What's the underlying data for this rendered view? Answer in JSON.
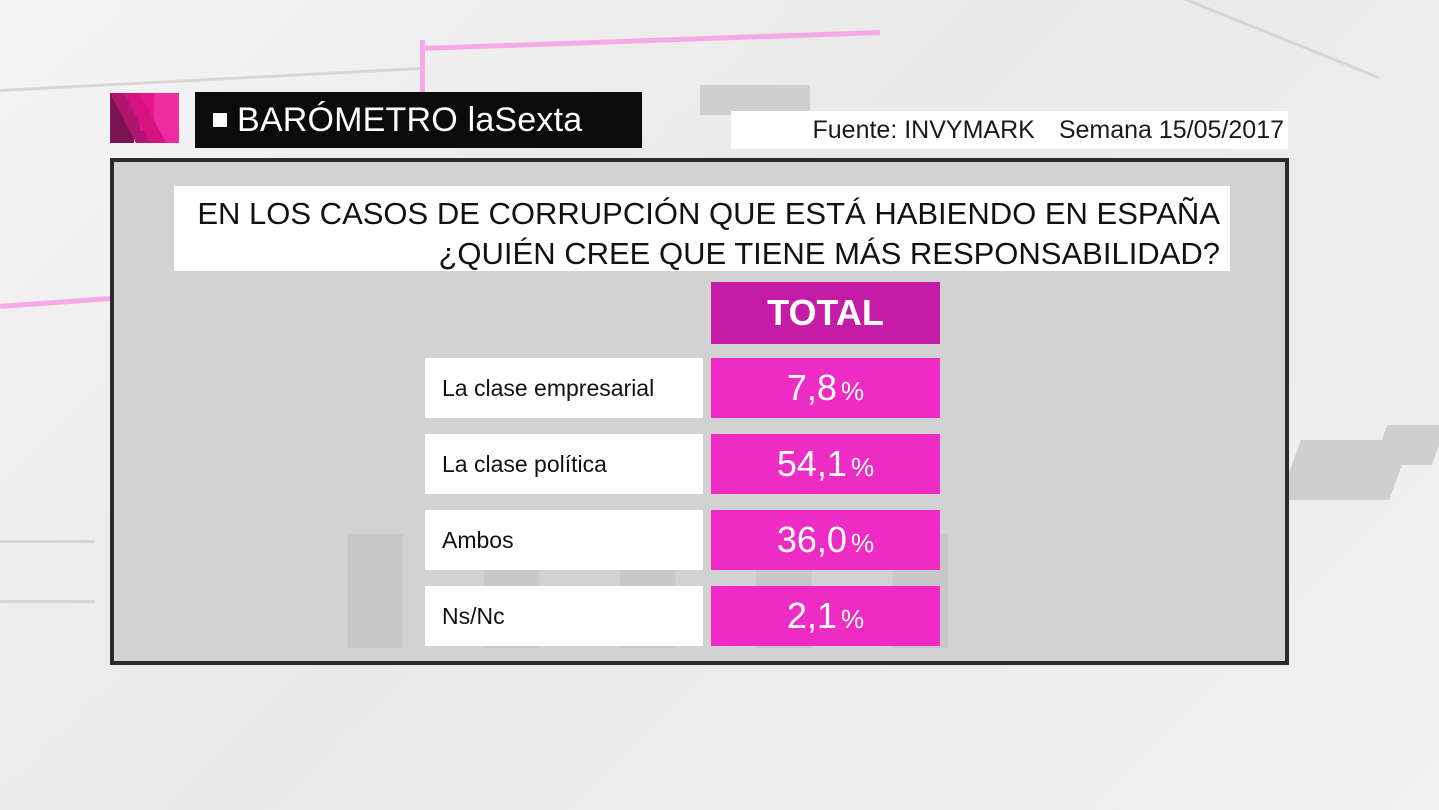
{
  "header": {
    "title": "BARÓMETRO laSexta",
    "source": "Fuente: INVYMARK",
    "week": "Semana 15/05/2017"
  },
  "question": {
    "line1": "EN LOS CASOS DE CORRUPCIÓN QUE ESTÁ HABIENDO EN ESPAÑA",
    "line2": "¿QUIÉN CREE QUE TIENE MÁS RESPONSABILIDAD?"
  },
  "colors": {
    "header_magenta": "#c41ca6",
    "value_pink": "#ee2bc4",
    "title_black": "#0b0b0b",
    "panel_grey": "#d2d2d2"
  },
  "chart_data": {
    "type": "table",
    "column_header": "TOTAL",
    "unit": "%",
    "rows": [
      {
        "label": "La clase empresarial",
        "value": 7.8,
        "display": "7,8"
      },
      {
        "label": "La clase política",
        "value": 54.1,
        "display": "54,1"
      },
      {
        "label": "Ambos",
        "value": 36.0,
        "display": "36,0"
      },
      {
        "label": "Ns/Nc",
        "value": 2.1,
        "display": "2,1"
      }
    ]
  }
}
